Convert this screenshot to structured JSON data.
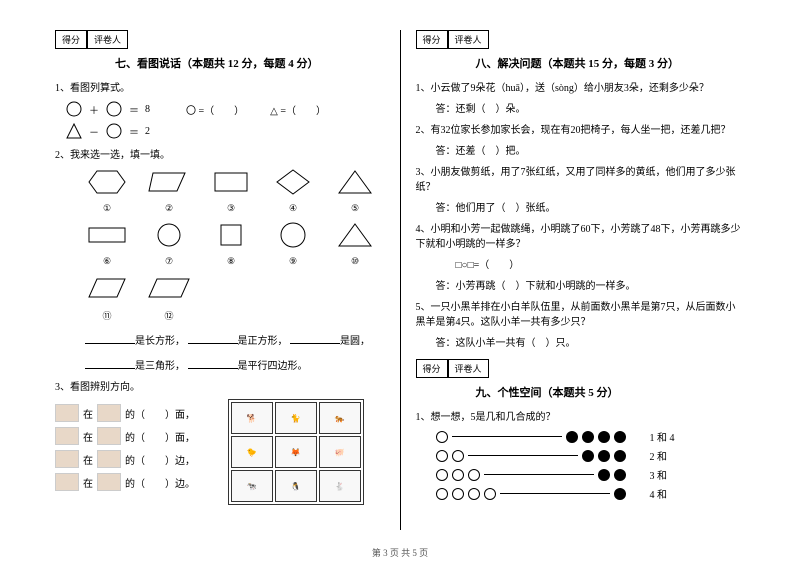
{
  "scorebox": {
    "score": "得分",
    "reviewer": "评卷人"
  },
  "left": {
    "section7": {
      "title": "七、看图说话（本题共 12 分，每题 4 分）"
    },
    "q1": {
      "label": "1、看图列算式。",
      "eq1_result": "8",
      "eq2_result": "2",
      "circle_blank": "〇 =（　　）",
      "triangle_blank": "△ =（　　）"
    },
    "q2": {
      "label": "2、我来选一选，填一填。",
      "nums": [
        "①",
        "②",
        "③",
        "④",
        "⑤",
        "⑥",
        "⑦",
        "⑧",
        "⑨",
        "⑩",
        "⑪",
        "⑫"
      ],
      "line1_a": "是长方形，",
      "line1_b": "是正方形，",
      "line1_c": "是圆，",
      "line2_a": "是三角形，",
      "line2_b": "是平行四边形。"
    },
    "q3": {
      "label": "3、看图辨别方向。",
      "r1": "在",
      "r1b": "的（　　）面，",
      "r2": "在",
      "r2b": "的（　　）面，",
      "r3": "在",
      "r3b": "的（　　）边，",
      "r4": "在",
      "r4b": "的（　　）边。"
    }
  },
  "right": {
    "section8": {
      "title": "八、解决问题（本题共 15 分，每题 3 分）"
    },
    "q1": {
      "text": "1、小云做了9朵花（huā），送（sòng）给小朋友3朵，还剩多少朵？",
      "ans": "答：还剩（　）朵。"
    },
    "q2": {
      "text": "2、有32位家长参加家长会，现在有20把椅子，每人坐一把，还差几把？",
      "ans": "答：还差（　）把。"
    },
    "q3": {
      "text": "3、小朋友做剪纸，用了7张红纸，又用了同样多的黄纸，他们用了多少张纸？",
      "ans": "答：他们用了（　）张纸。"
    },
    "q4": {
      "text": "4、小明和小芳一起做跳绳，小明跳了60下，小芳跳了48下，小芳再跳多少下就和小明跳的一样多？",
      "eq": "□○□=（　　）",
      "ans": "答：小芳再跳（　）下就和小明跳的一样多。"
    },
    "q5": {
      "text": "5、一只小黑羊排在小白羊队伍里，从前面数小黑羊是第7只，从后面数小黑羊是第4只。这队小羊一共有多少只？",
      "ans": "答：这队小羊一共有（　）只。"
    },
    "section9": {
      "title": "九、个性空间（本题共 5 分）"
    },
    "q9": {
      "label": "1、想一想，5是几和几合成的？",
      "rows": [
        {
          "hollow": 1,
          "solid": 4,
          "label": "1 和 4"
        },
        {
          "hollow": 2,
          "solid": 3,
          "label": "2 和"
        },
        {
          "hollow": 3,
          "solid": 2,
          "label": "3 和"
        },
        {
          "hollow": 4,
          "solid": 1,
          "label": "4 和"
        }
      ]
    }
  },
  "footer": "第 3 页 共 5 页",
  "colors": {
    "text": "#000000",
    "bg": "#ffffff",
    "border": "#000000",
    "cell": "#f8f8f8"
  }
}
